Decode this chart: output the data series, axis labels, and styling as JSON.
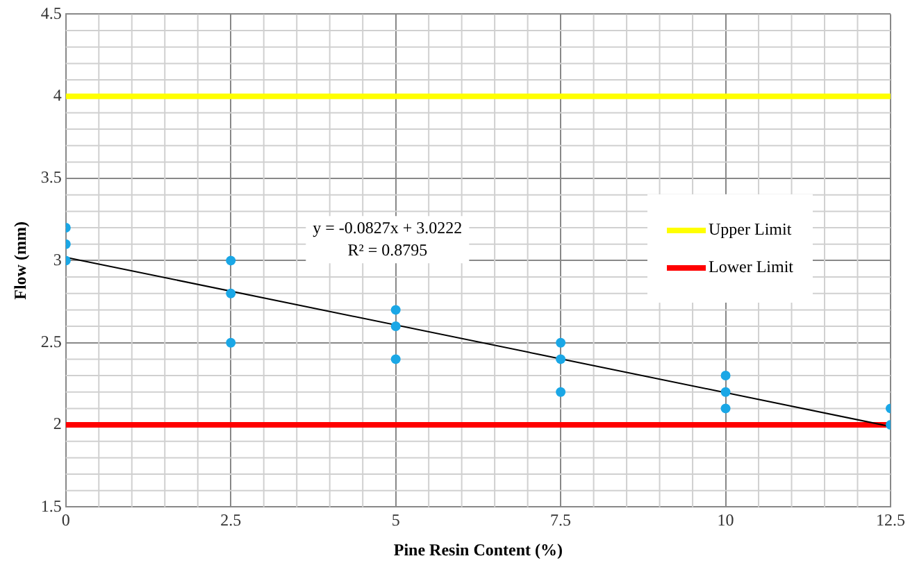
{
  "chart_data": {
    "type": "scatter",
    "xlabel": "Pine Resin Content (%)",
    "ylabel": "Flow (mm)",
    "xlim": [
      0,
      12.5
    ],
    "xticks": [
      0,
      2.5,
      5,
      7.5,
      10,
      12.5
    ],
    "ylim": [
      1.5,
      4.5
    ],
    "yticks": [
      1.5,
      2,
      2.5,
      3,
      3.5,
      4,
      4.5
    ],
    "grid": true,
    "legend": "right",
    "annotations": [
      "y = -0.0827x + 3.0222",
      "R² = 0.8795"
    ],
    "series": [
      {
        "color": "#1aa7e6",
        "marker": "circle",
        "x": [
          0,
          0,
          0,
          2.5,
          2.5,
          2.5,
          5,
          5,
          5,
          7.5,
          7.5,
          7.5,
          10,
          10,
          10,
          12.5,
          12.5
        ],
        "values": [
          3.2,
          3.1,
          3.0,
          3.0,
          2.8,
          2.5,
          2.7,
          2.6,
          2.4,
          2.5,
          2.4,
          2.2,
          2.3,
          2.2,
          2.1,
          2.1,
          2.0
        ]
      },
      {
        "type": "line",
        "color": "#000000",
        "marker": "none",
        "x": [
          0,
          12.5
        ],
        "values": [
          3.02,
          1.99
        ]
      },
      {
        "type": "line",
        "name": "Upper Limit",
        "color": "#ffff00",
        "marker": "none",
        "x": [
          0,
          12.5
        ],
        "values": [
          4,
          4
        ]
      },
      {
        "type": "line",
        "name": "Lower Limit",
        "color": "#ff0000",
        "marker": "none",
        "x": [
          0,
          12.5
        ],
        "values": [
          2,
          2
        ]
      }
    ]
  }
}
